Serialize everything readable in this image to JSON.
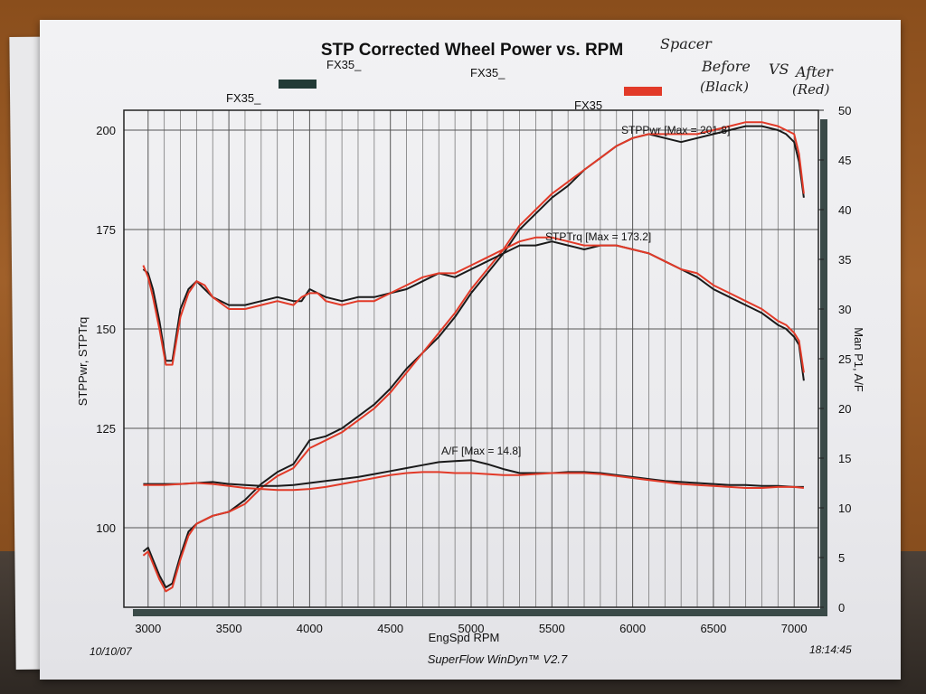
{
  "handwritten_note": {
    "line1": "Spacer",
    "line2": "Before",
    "line3": "VS",
    "line4": "After",
    "line5": "(Black)",
    "line6": "(Red)"
  },
  "legend": [
    {
      "label": "FX35_",
      "color": "#223a36"
    },
    {
      "label": "FX35_",
      "color": ""
    },
    {
      "label": "FX35_",
      "color": "#e23a28"
    },
    {
      "label": "FX35",
      "color": ""
    }
  ],
  "footer": {
    "date": "10/10/07",
    "software": "SuperFlow WinDyn™ V2.7",
    "time": "18:14:45"
  },
  "chart_data": {
    "type": "line",
    "title": "STP Corrected Wheel Power vs. RPM",
    "xlabel": "EngSpd  RPM",
    "ylabel": "STPPwr, STPTrq",
    "y2label": "Man P1, A/F",
    "xlim": [
      2850,
      7150
    ],
    "ylim": [
      80,
      205
    ],
    "y2lim": [
      0,
      50
    ],
    "xticks": [
      3000,
      3500,
      4000,
      4500,
      5000,
      5500,
      6000,
      6500,
      7000
    ],
    "yticks": [
      100,
      125,
      150,
      175,
      200
    ],
    "y2ticks": [
      0,
      5,
      10,
      15,
      20,
      25,
      30,
      35,
      40,
      45,
      50
    ],
    "grid": true,
    "annotations": [
      {
        "text": "STPPwr [Max = 201.8]",
        "color": "#d8402c"
      },
      {
        "text": "STPTrq [Max = 173.2]",
        "color": "#d8402c"
      },
      {
        "text": "A/F   [Max = 14.8]",
        "color": "#111111"
      }
    ],
    "series": [
      {
        "color": "#1a1a1a",
        "axis": "left",
        "x": [
          2970,
          3000,
          3030,
          3070,
          3110,
          3150,
          3200,
          3250,
          3300,
          3350,
          3400,
          3500,
          3600,
          3700,
          3800,
          3900,
          4000,
          4100,
          4200,
          4300,
          4400,
          4500,
          4600,
          4700,
          4800,
          4900,
          5000,
          5100,
          5200,
          5300,
          5400,
          5500,
          5600,
          5700,
          5800,
          5900,
          6000,
          6100,
          6200,
          6300,
          6400,
          6500,
          6600,
          6700,
          6800,
          6900,
          6950,
          7000,
          7030,
          7060
        ],
        "y": [
          94,
          95,
          92,
          88,
          85,
          86,
          93,
          99,
          101,
          102,
          103,
          104,
          107,
          111,
          114,
          116,
          122,
          123,
          125,
          128,
          131,
          135,
          140,
          144,
          148,
          153,
          159,
          164,
          169,
          175,
          179,
          183,
          186,
          190,
          193,
          196,
          198,
          199,
          198,
          197,
          198,
          199,
          200,
          201,
          201,
          200,
          199,
          197,
          192,
          183
        ]
      },
      {
        "color": "#e23a28",
        "axis": "left",
        "x": [
          2970,
          3000,
          3030,
          3070,
          3110,
          3150,
          3200,
          3250,
          3300,
          3350,
          3400,
          3500,
          3600,
          3700,
          3800,
          3900,
          4000,
          4100,
          4200,
          4300,
          4400,
          4500,
          4600,
          4700,
          4800,
          4900,
          5000,
          5100,
          5200,
          5300,
          5400,
          5500,
          5600,
          5700,
          5800,
          5900,
          6000,
          6100,
          6200,
          6300,
          6400,
          6500,
          6600,
          6700,
          6800,
          6900,
          6950,
          7000,
          7030,
          7060
        ],
        "y": [
          93,
          94,
          91,
          87,
          84,
          85,
          92,
          98,
          101,
          102,
          103,
          104,
          106,
          110,
          113,
          115,
          120,
          122,
          124,
          127,
          130,
          134,
          139,
          144,
          149,
          154,
          160,
          165,
          170,
          176,
          180,
          184,
          187,
          190,
          193,
          196,
          198,
          199,
          199,
          199,
          199,
          200,
          201,
          202,
          202,
          201,
          200,
          199,
          194,
          184
        ]
      },
      {
        "color": "#1a1a1a",
        "axis": "left",
        "x": [
          2970,
          3000,
          3030,
          3070,
          3110,
          3150,
          3200,
          3250,
          3300,
          3350,
          3400,
          3500,
          3600,
          3700,
          3800,
          3900,
          3950,
          4000,
          4050,
          4100,
          4200,
          4300,
          4400,
          4500,
          4600,
          4700,
          4800,
          4900,
          5000,
          5100,
          5200,
          5300,
          5400,
          5500,
          5600,
          5700,
          5800,
          5900,
          6000,
          6100,
          6200,
          6300,
          6400,
          6500,
          6600,
          6700,
          6800,
          6900,
          6950,
          7000,
          7030,
          7060
        ],
        "y": [
          165,
          164,
          160,
          152,
          142,
          142,
          155,
          160,
          162,
          160,
          158,
          156,
          156,
          157,
          158,
          157,
          157,
          160,
          159,
          158,
          157,
          158,
          158,
          159,
          160,
          162,
          164,
          163,
          165,
          167,
          169,
          171,
          171,
          172,
          171,
          170,
          171,
          171,
          170,
          169,
          167,
          165,
          163,
          160,
          158,
          156,
          154,
          151,
          150,
          148,
          146,
          137
        ]
      },
      {
        "color": "#e23a28",
        "axis": "left",
        "x": [
          2970,
          3000,
          3030,
          3070,
          3110,
          3150,
          3200,
          3250,
          3300,
          3350,
          3400,
          3500,
          3600,
          3700,
          3800,
          3900,
          3950,
          4000,
          4050,
          4100,
          4200,
          4300,
          4400,
          4500,
          4600,
          4700,
          4800,
          4900,
          5000,
          5100,
          5200,
          5300,
          5400,
          5500,
          5600,
          5700,
          5800,
          5900,
          6000,
          6100,
          6200,
          6300,
          6400,
          6500,
          6600,
          6700,
          6800,
          6900,
          6950,
          7000,
          7030,
          7060
        ],
        "y": [
          166,
          163,
          158,
          150,
          141,
          141,
          153,
          159,
          162,
          161,
          158,
          155,
          155,
          156,
          157,
          156,
          158,
          159,
          159,
          157,
          156,
          157,
          157,
          159,
          161,
          163,
          164,
          164,
          166,
          168,
          170,
          172,
          173,
          173,
          172,
          171,
          171,
          171,
          170,
          169,
          167,
          165,
          164,
          161,
          159,
          157,
          155,
          152,
          151,
          149,
          147,
          139
        ]
      },
      {
        "color": "#1a1a1a",
        "axis": "right",
        "x": [
          2970,
          3100,
          3200,
          3300,
          3400,
          3500,
          3600,
          3700,
          3800,
          3900,
          4000,
          4100,
          4200,
          4300,
          4400,
          4500,
          4600,
          4700,
          4800,
          4900,
          5000,
          5100,
          5200,
          5300,
          5400,
          5500,
          5600,
          5700,
          5800,
          5900,
          6000,
          6100,
          6200,
          6300,
          6400,
          6500,
          6600,
          6700,
          6800,
          6900,
          7000,
          7060
        ],
        "y": [
          12.4,
          12.4,
          12.4,
          12.5,
          12.6,
          12.4,
          12.3,
          12.2,
          12.2,
          12.3,
          12.5,
          12.7,
          12.9,
          13.1,
          13.4,
          13.7,
          14.0,
          14.3,
          14.6,
          14.7,
          14.8,
          14.4,
          13.9,
          13.5,
          13.5,
          13.5,
          13.6,
          13.6,
          13.5,
          13.3,
          13.1,
          12.9,
          12.7,
          12.6,
          12.5,
          12.4,
          12.3,
          12.3,
          12.2,
          12.2,
          12.1,
          12.1
        ]
      },
      {
        "color": "#e23a28",
        "axis": "right",
        "x": [
          2970,
          3100,
          3200,
          3300,
          3400,
          3500,
          3600,
          3700,
          3800,
          3900,
          4000,
          4100,
          4200,
          4300,
          4400,
          4500,
          4600,
          4700,
          4800,
          4900,
          5000,
          5100,
          5200,
          5300,
          5400,
          5500,
          5600,
          5700,
          5800,
          5900,
          6000,
          6100,
          6200,
          6300,
          6400,
          6500,
          6600,
          6700,
          6800,
          6900,
          7000,
          7060
        ],
        "y": [
          12.3,
          12.3,
          12.4,
          12.5,
          12.4,
          12.2,
          12.0,
          11.9,
          11.8,
          11.8,
          11.9,
          12.1,
          12.4,
          12.7,
          13.0,
          13.3,
          13.5,
          13.6,
          13.6,
          13.5,
          13.5,
          13.4,
          13.3,
          13.3,
          13.4,
          13.5,
          13.5,
          13.5,
          13.4,
          13.2,
          13.0,
          12.8,
          12.6,
          12.4,
          12.3,
          12.2,
          12.1,
          12.0,
          12.0,
          12.1,
          12.1,
          12.0
        ]
      }
    ]
  }
}
